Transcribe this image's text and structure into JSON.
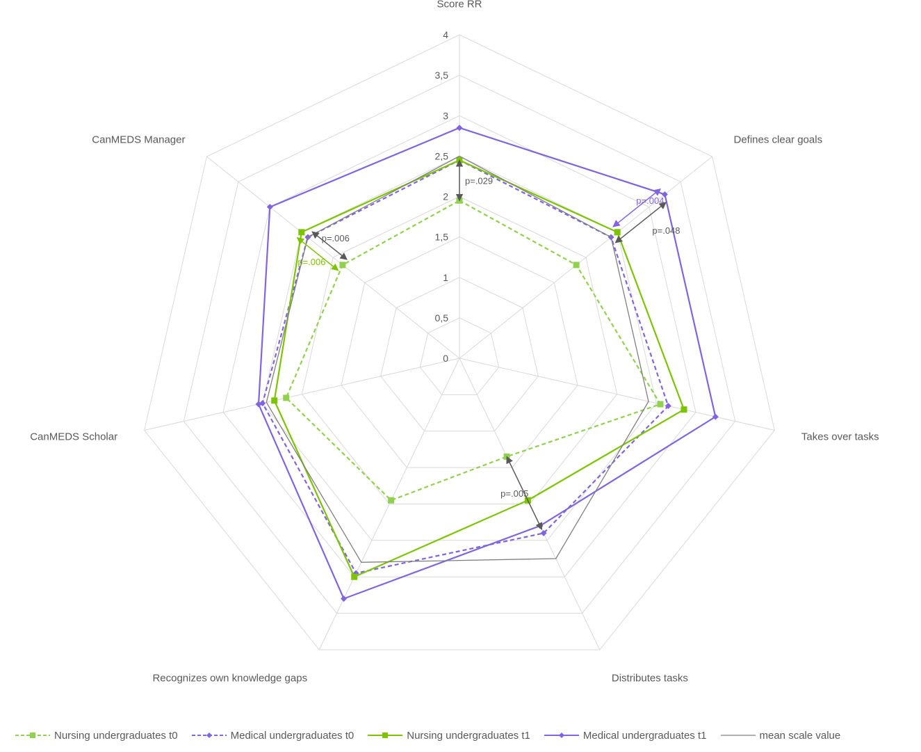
{
  "chart_data": {
    "type": "radar",
    "axes": [
      "Score RR",
      "Defines clear goals",
      "Takes over tasks",
      "Distributes tasks",
      "Recognizes own knowledge gaps",
      "CanMEDS Scholar",
      "CanMEDS Manager"
    ],
    "r_ticks": [
      "0",
      "0,5",
      "1",
      "1,5",
      "2",
      "2,5",
      "3",
      "3,5",
      "4"
    ],
    "rlim": [
      0,
      4
    ],
    "legend_position": "bottom",
    "series": [
      {
        "name": "Nursing undergraduates t0",
        "color": "#92D050",
        "dash": "dashed",
        "marker": "square",
        "values": [
          1.95,
          1.85,
          2.55,
          1.35,
          1.95,
          2.2,
          1.85
        ]
      },
      {
        "name": "Medical undergraduates t0",
        "color": "#8064E0",
        "dash": "dashed",
        "marker": "diamond",
        "values": [
          2.45,
          2.4,
          2.65,
          2.4,
          2.95,
          2.5,
          2.4
        ]
      },
      {
        "name": "Nursing undergraduates t1",
        "color": "#7DC400",
        "dash": "solid",
        "marker": "square",
        "values": [
          2.45,
          2.5,
          2.85,
          1.95,
          3.0,
          2.35,
          2.5
        ]
      },
      {
        "name": "Medical undergraduates t1",
        "color": "#8064E0",
        "dash": "solid",
        "marker": "diamond",
        "values": [
          2.85,
          3.25,
          3.25,
          2.3,
          3.3,
          2.55,
          3.0
        ]
      },
      {
        "name": "mean scale value",
        "color": "#7f7f7f",
        "dash": "solid",
        "marker": "none",
        "values": [
          2.5,
          2.4,
          2.4,
          2.75,
          2.8,
          2.45,
          2.4
        ]
      }
    ],
    "annotations": [
      {
        "text": "p=.029",
        "color": "#595959",
        "axis": 0,
        "from": 1.95,
        "to": 2.45
      },
      {
        "text": "p=.004",
        "color": "#8064E0",
        "axis": 1,
        "from": 2.5,
        "to": 3.25
      },
      {
        "text": "p=.048",
        "color": "#595959",
        "axis": 1,
        "from": 2.4,
        "to": 3.2
      },
      {
        "text": "p=.005",
        "color": "#595959",
        "axis": 3,
        "from": 1.35,
        "to": 2.35
      },
      {
        "text": "p=.006",
        "color": "#7DC400",
        "axis": 6,
        "from": 1.85,
        "to": 2.5
      },
      {
        "text": "p=.006",
        "color": "#595959",
        "axis": 6,
        "from": 1.85,
        "to": 2.4
      }
    ]
  }
}
